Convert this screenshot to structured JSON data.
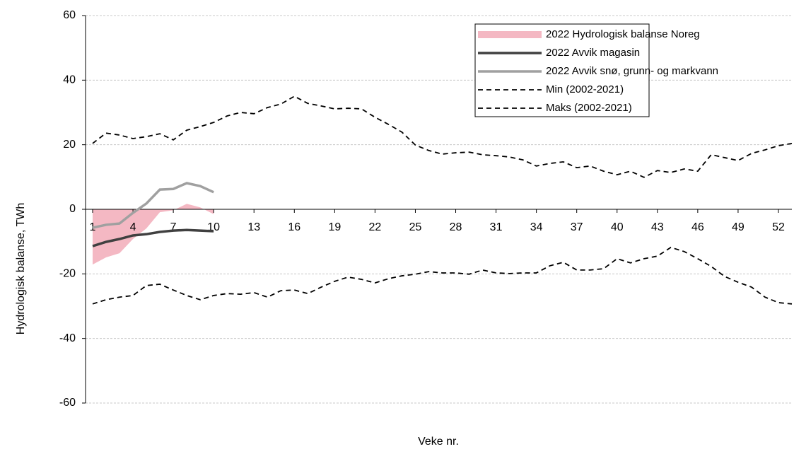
{
  "chart_data": {
    "type": "line",
    "ylabel": "Hydrologisk balanse, TWh",
    "xlabel": "Veke nr.",
    "x": [
      1,
      2,
      3,
      4,
      5,
      6,
      7,
      8,
      9,
      10,
      11,
      12,
      13,
      14,
      15,
      16,
      17,
      18,
      19,
      20,
      21,
      22,
      23,
      24,
      25,
      26,
      27,
      28,
      29,
      30,
      31,
      32,
      33,
      34,
      35,
      36,
      37,
      38,
      39,
      40,
      41,
      42,
      43,
      44,
      45,
      46,
      47,
      48,
      49,
      50,
      51,
      52,
      53
    ],
    "xlim": [
      1,
      53
    ],
    "xticks": [
      1,
      4,
      7,
      10,
      13,
      16,
      19,
      22,
      25,
      28,
      31,
      34,
      37,
      40,
      43,
      46,
      49,
      52
    ],
    "ylim": [
      -60,
      60
    ],
    "yticks": [
      -60,
      -40,
      -20,
      0,
      20,
      40,
      60
    ],
    "grid": true,
    "legend": "upper right",
    "series": [
      {
        "name": "2022 Hydrologisk balanse Noreg",
        "color": "#f4b8c3",
        "kind": "area",
        "values": [
          -17.1,
          -14.9,
          -13.6,
          -9.2,
          -5.9,
          -0.9,
          -0.3,
          1.7,
          0.6,
          -1.5,
          null,
          null,
          null,
          null,
          null,
          null,
          null,
          null,
          null,
          null,
          null,
          null,
          null,
          null,
          null,
          null,
          null,
          null,
          null,
          null,
          null,
          null,
          null,
          null,
          null,
          null,
          null,
          null,
          null,
          null,
          null,
          null,
          null,
          null,
          null,
          null,
          null,
          null,
          null,
          null,
          null,
          null,
          null
        ]
      },
      {
        "name": "2022 Avvik magasin",
        "color": "#404040",
        "kind": "solid",
        "values": [
          -11.4,
          -10.1,
          -9.2,
          -8.1,
          -7.7,
          -7,
          -6.6,
          -6.4,
          -6.6,
          -6.8,
          null,
          null,
          null,
          null,
          null,
          null,
          null,
          null,
          null,
          null,
          null,
          null,
          null,
          null,
          null,
          null,
          null,
          null,
          null,
          null,
          null,
          null,
          null,
          null,
          null,
          null,
          null,
          null,
          null,
          null,
          null,
          null,
          null,
          null,
          null,
          null,
          null,
          null,
          null,
          null,
          null,
          null,
          null
        ]
      },
      {
        "name": "2022 Avvik snø, grunn- og markvann",
        "color": "#a0a0a0",
        "kind": "solid",
        "values": [
          -5.7,
          -4.8,
          -4.4,
          -1.1,
          1.8,
          6.1,
          6.3,
          8.1,
          7.2,
          5.3,
          null,
          null,
          null,
          null,
          null,
          null,
          null,
          null,
          null,
          null,
          null,
          null,
          null,
          null,
          null,
          null,
          null,
          null,
          null,
          null,
          null,
          null,
          null,
          null,
          null,
          null,
          null,
          null,
          null,
          null,
          null,
          null,
          null,
          null,
          null,
          null,
          null,
          null,
          null,
          null,
          null,
          null,
          null
        ]
      },
      {
        "name": "Min (2002-2021)",
        "color": "#000000",
        "kind": "dashed",
        "values": [
          -29.3,
          -28,
          -27.2,
          -26.7,
          -23.6,
          -23.2,
          -25,
          -26.7,
          -28,
          -26.7,
          -26.1,
          -26.3,
          -25.8,
          -27.2,
          -25.2,
          -25,
          -26.1,
          -24.1,
          -22.3,
          -21,
          -21.7,
          -22.8,
          -21.5,
          -20.6,
          -20.1,
          -19.3,
          -19.7,
          -19.7,
          -20.1,
          -18.8,
          -19.7,
          -19.9,
          -19.7,
          -19.7,
          -17.5,
          -16.4,
          -18.8,
          -18.8,
          -18.4,
          -15.3,
          -16.6,
          -15.3,
          -14.5,
          -11.8,
          -13.1,
          -15.3,
          -17.7,
          -20.8,
          -22.6,
          -24.1,
          -27.2,
          -28.9,
          -29.3
        ]
      },
      {
        "name": "Maks (2002-2021)",
        "color": "#000000",
        "kind": "dashed",
        "values": [
          20.4,
          23.6,
          23,
          21.9,
          22.5,
          23.4,
          21.5,
          24.5,
          25.6,
          26.9,
          28.9,
          30,
          29.6,
          31.5,
          32.6,
          35,
          32.8,
          32,
          31.1,
          31.3,
          31.1,
          28.5,
          26.3,
          23.9,
          19.9,
          18.2,
          17.1,
          17.5,
          17.7,
          16.9,
          16.6,
          16.2,
          15.3,
          13.4,
          14.2,
          14.7,
          12.9,
          13.4,
          11.8,
          10.7,
          11.8,
          9.9,
          12,
          11.4,
          12.5,
          11.8,
          16.9,
          16,
          15.1,
          17.3,
          18.4,
          19.7,
          20.4
        ]
      }
    ]
  }
}
